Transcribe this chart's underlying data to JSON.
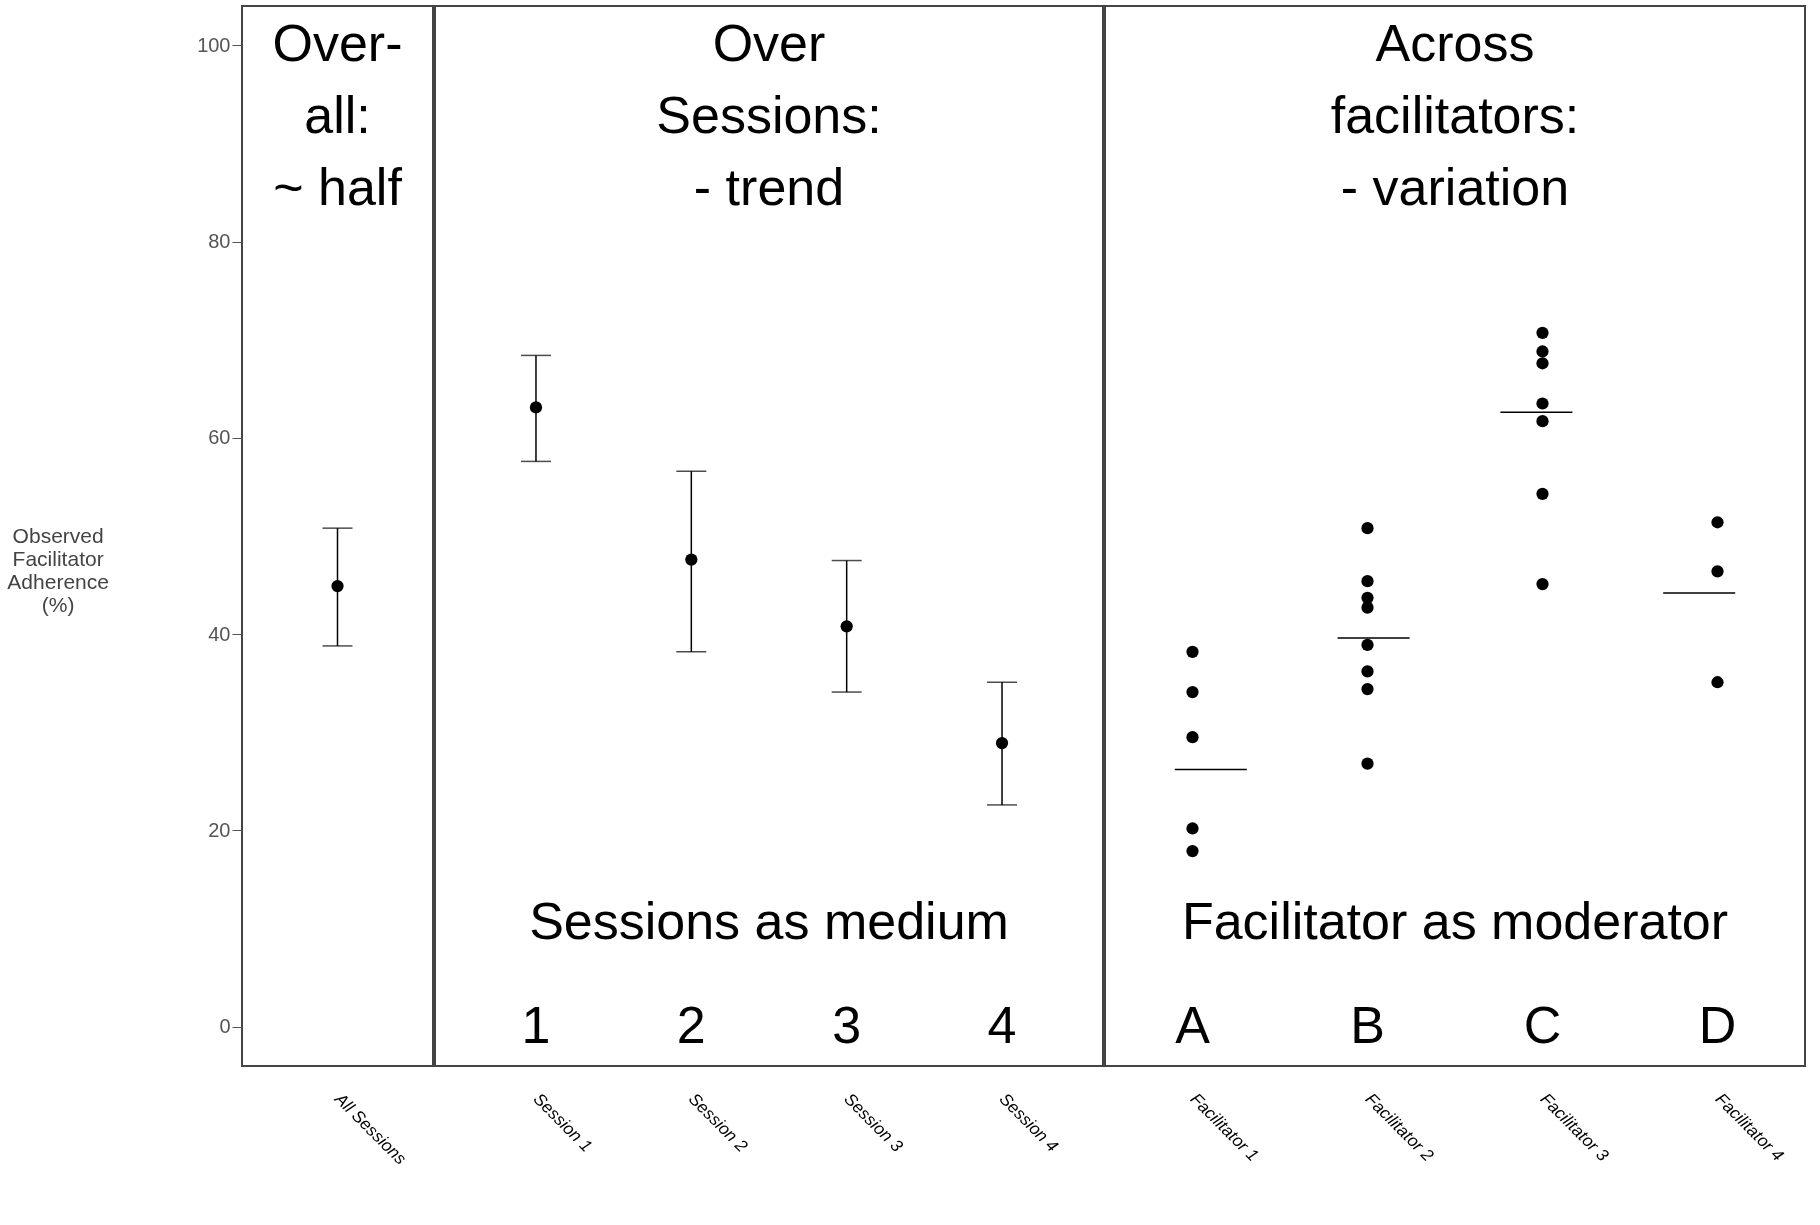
{
  "chart_data": [
    {
      "type": "scatter",
      "categories": [
        "All Sessions"
      ],
      "values": [
        44.9
      ],
      "errors": [
        [
          38.8,
          50.8
        ]
      ],
      "color": "#000000",
      "marker": "circle",
      "ylim": [
        -4,
        104
      ],
      "yticks": [
        0,
        20,
        40,
        60,
        80,
        100
      ],
      "ylabel": "Observed\nFacilitator\nAdherence\n(%)",
      "annotations": [
        "Over-\nall:\n~ half"
      ],
      "grid": false,
      "legend": false
    },
    {
      "type": "scatter",
      "categories": [
        "Session 1",
        "Session 2",
        "Session 3",
        "Session 4"
      ],
      "values": [
        63.1,
        47.6,
        40.8,
        28.9
      ],
      "errors": [
        [
          57.6,
          68.4
        ],
        [
          38.2,
          56.6
        ],
        [
          34.1,
          47.5
        ],
        [
          22.6,
          35.1
        ]
      ],
      "color": "#000000",
      "marker": "circle",
      "ylim": [
        -4,
        104
      ],
      "yticks": [
        0,
        20,
        40,
        60,
        80,
        100
      ],
      "tick_labels": "x",
      "grid": false,
      "legend": false,
      "annotations": [
        "Over\nSessions:\n- trend",
        "Sessions as medium",
        "1",
        "2",
        "3",
        "4"
      ]
    },
    {
      "type": "scatter",
      "categories": [
        "Facilitator 1",
        "Facilitator 2",
        "Facilitator 3",
        "Facilitator 4"
      ],
      "ylim": [
        -4,
        104
      ],
      "yticks": [
        0,
        20,
        40,
        60,
        80,
        100
      ],
      "tick_labels": "x",
      "grid": false,
      "legend": false,
      "series": [
        {
          "type": "scatter",
          "marker": "circle",
          "color": "#000000",
          "x": [
            "Facilitator 1",
            "Facilitator 1",
            "Facilitator 1",
            "Facilitator 1",
            "Facilitator 1",
            "Facilitator 2",
            "Facilitator 2",
            "Facilitator 2",
            "Facilitator 2",
            "Facilitator 2",
            "Facilitator 2",
            "Facilitator 2",
            "Facilitator 2",
            "Facilitator 3",
            "Facilitator 3",
            "Facilitator 3",
            "Facilitator 3",
            "Facilitator 3",
            "Facilitator 3",
            "Facilitator 3",
            "Facilitator 4",
            "Facilitator 4",
            "Facilitator 4"
          ],
          "values": [
            38.2,
            34.1,
            29.5,
            20.2,
            17.9,
            50.8,
            45.4,
            43.7,
            42.7,
            38.9,
            36.2,
            34.4,
            26.8,
            70.7,
            68.8,
            67.6,
            63.5,
            61.7,
            54.3,
            45.1,
            51.4,
            46.4,
            35.1
          ]
        }
      ],
      "ref_lines": [
        {
          "axis": "y",
          "value": 26.2,
          "color": "#000000"
        },
        {
          "axis": "y",
          "value": 39.6,
          "color": "#000000"
        },
        {
          "axis": "y",
          "value": 62.6,
          "color": "#000000"
        },
        {
          "axis": "y",
          "value": 44.2,
          "color": "#000000"
        }
      ],
      "annotations": [
        "Across\nfacilitators:\n- variation",
        "Facilitator as moderator",
        "A",
        "B",
        "C",
        "D"
      ]
    }
  ]
}
